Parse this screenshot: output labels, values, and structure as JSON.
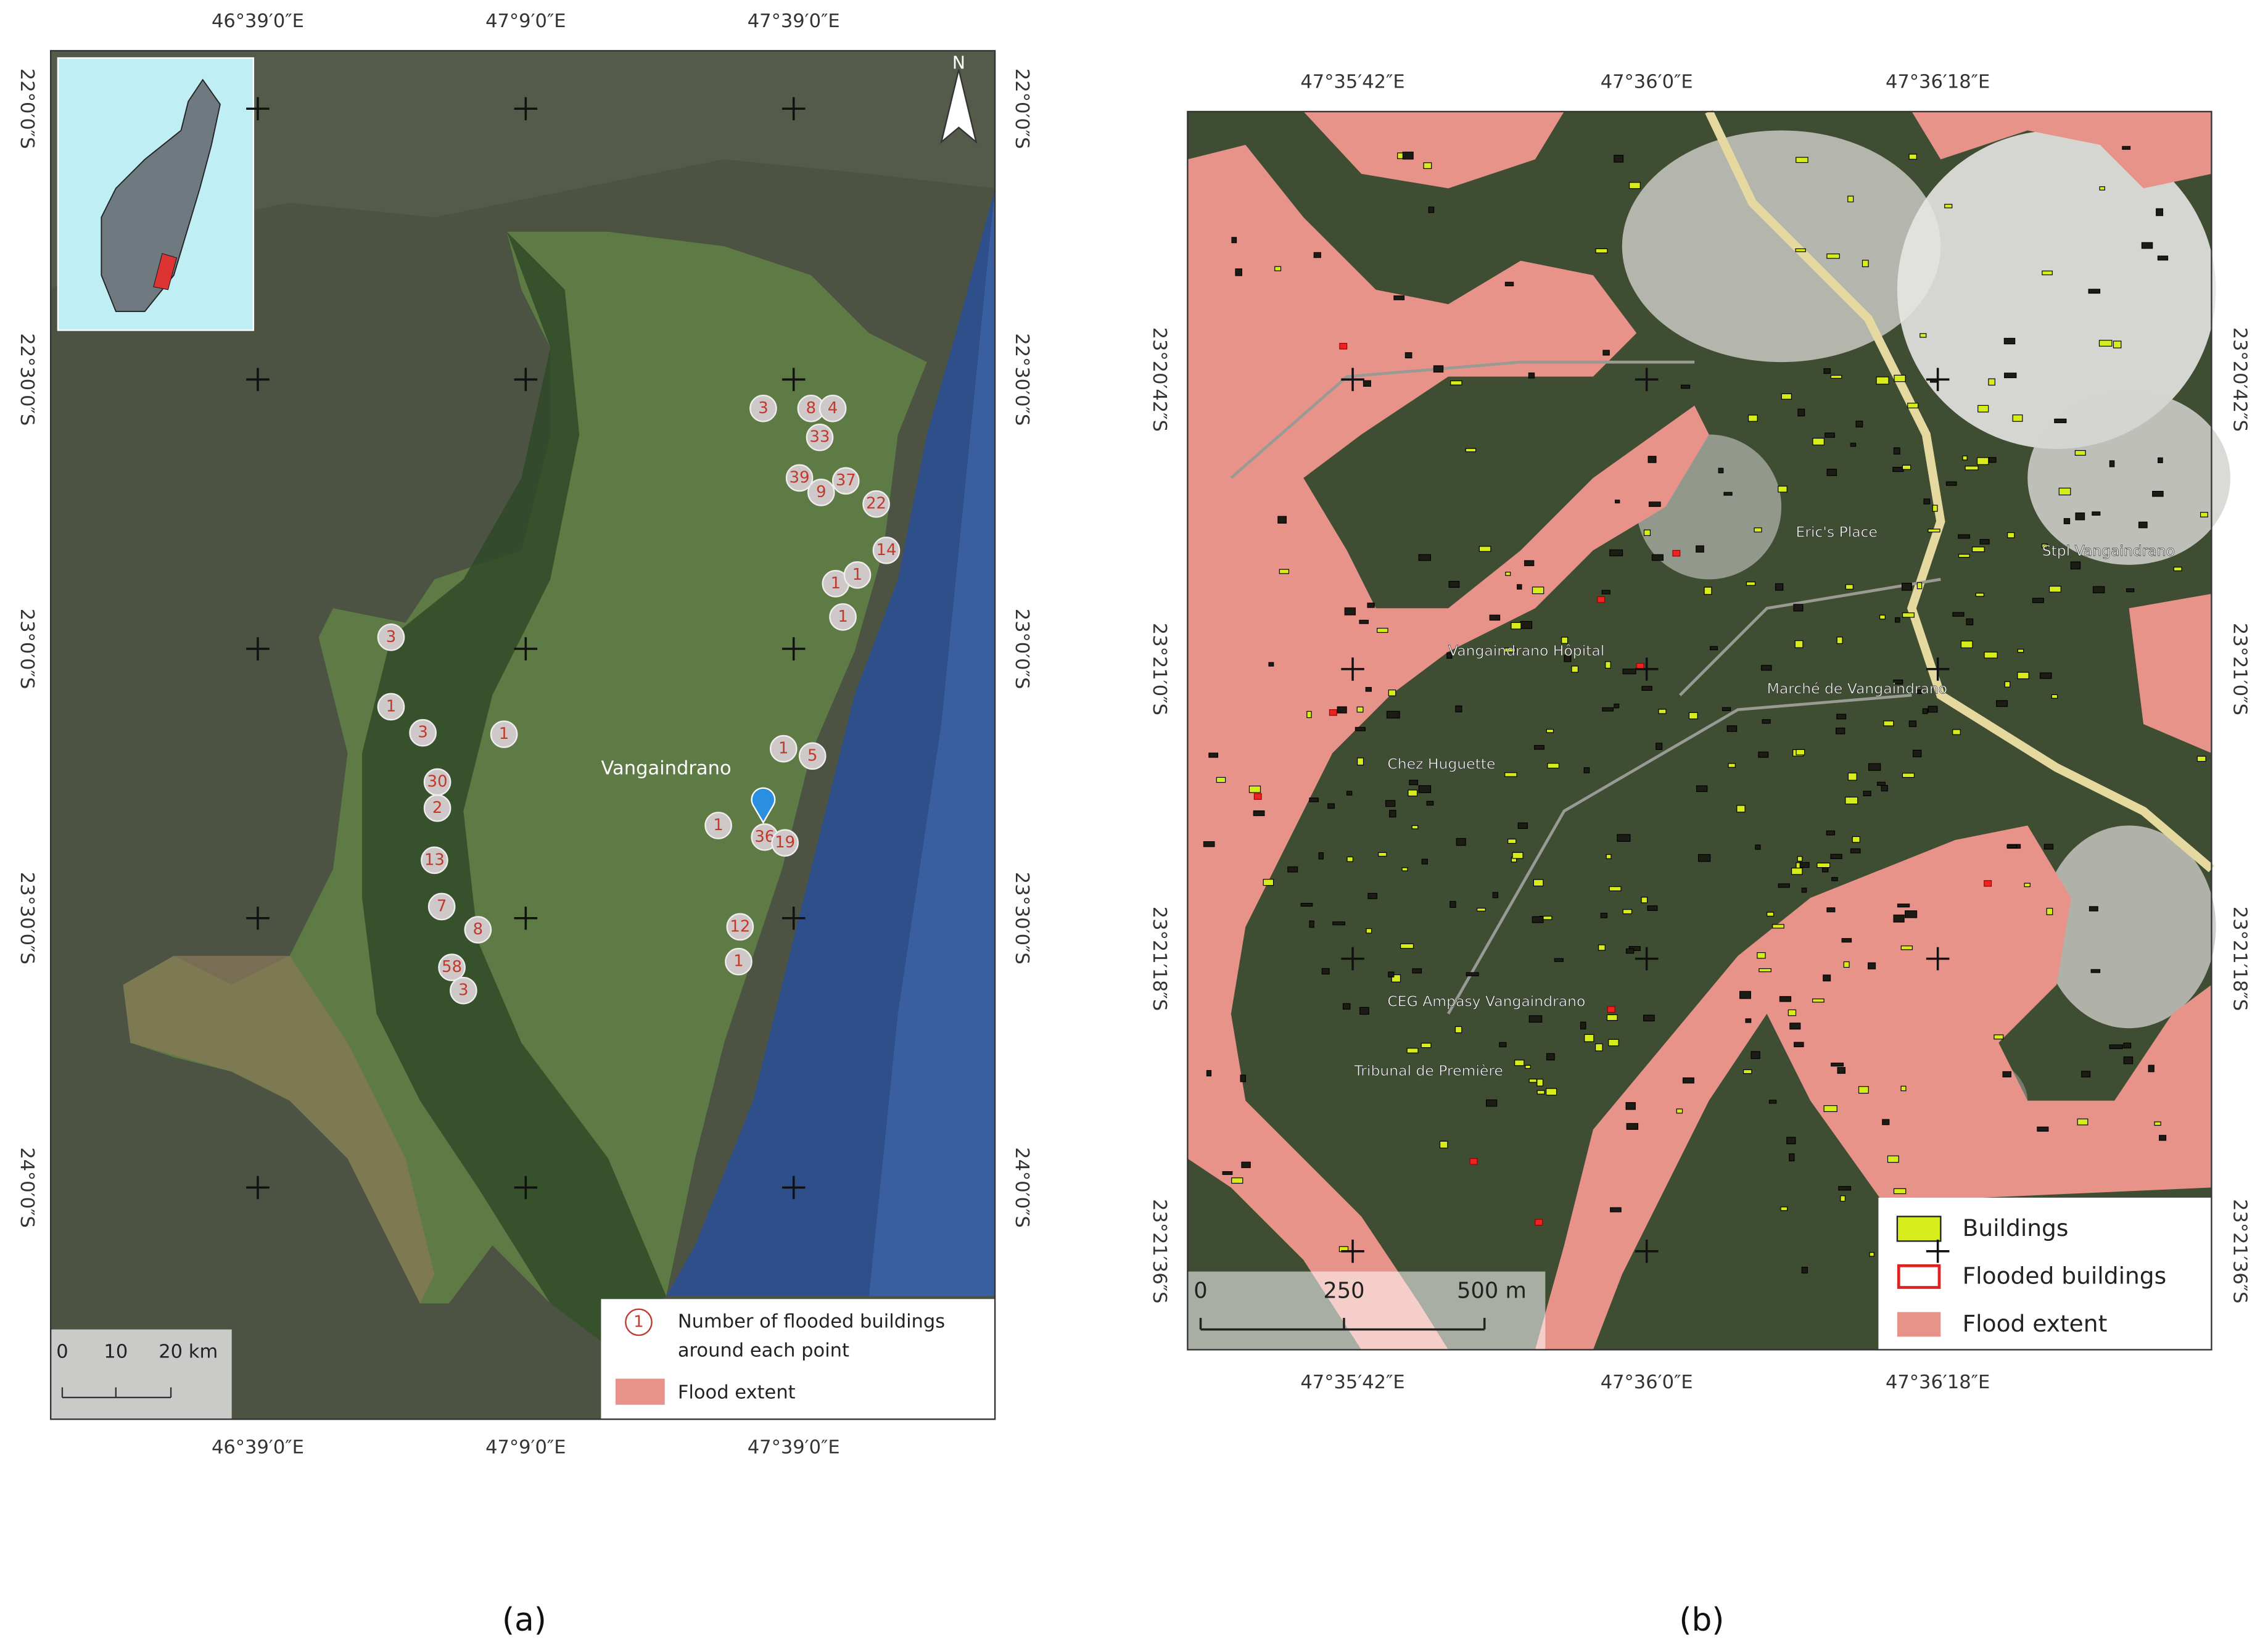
{
  "panel_a": {
    "top_labels": [
      "46°39′0″E",
      "47°9′0″E",
      "47°39′0″E"
    ],
    "bottom_labels": [
      "46°39′0″E",
      "47°9′0″E",
      "47°39′0″E"
    ],
    "left_labels": [
      "22°0′0″S",
      "22°30′0″S",
      "23°0′0″S",
      "23°30′0″S",
      "24°0′0″S"
    ],
    "right_labels": [
      "22°0′0″S",
      "22°30′0″S",
      "23°0′0″S",
      "23°30′0″S",
      "24°0′0″S"
    ],
    "points": [
      "3",
      "8",
      "4",
      "33",
      "39",
      "9",
      "37",
      "22",
      "14",
      "1",
      "1",
      "1",
      "3",
      "1",
      "3",
      "1",
      "30",
      "2",
      "13",
      "7",
      "8",
      "58",
      "3",
      "1",
      "5",
      "1",
      "36",
      "19",
      "12",
      "1"
    ],
    "place_label": "Vangaindrano",
    "north": "N",
    "legend": {
      "point_icon": "1",
      "point_text": [
        "Number of flooded buildings",
        "around each point"
      ],
      "flood": "Flood extent"
    },
    "scale": [
      "0",
      "10",
      "20 km"
    ],
    "caption": "(a)"
  },
  "panel_b": {
    "top_labels": [
      "47°35′42″E",
      "47°36′0″E",
      "47°36′18″E"
    ],
    "bottom_labels": [
      "47°35′42″E",
      "47°36′0″E",
      "47°36′18″E"
    ],
    "left_labels": [
      "23°20′42″S",
      "23°21′0″S",
      "23°21′18″S",
      "23°21′36″S"
    ],
    "right_labels": [
      "23°20′42″S",
      "23°21′0″S",
      "23°21′18″S",
      "23°21′36″S"
    ],
    "places": [
      "Eric's Place",
      "Stpl Vangaindrano",
      "Vangaindrano Hôpital",
      "Marché de Vangaindrano",
      "Chez Huguette",
      "CEG Ampasy Vangaindrano",
      "Tribunal de Première"
    ],
    "legend": [
      "Buildings",
      "Flooded buildings",
      "Flood extent"
    ],
    "scale": [
      "0",
      "250",
      "500 m"
    ],
    "caption": "(b)"
  }
}
